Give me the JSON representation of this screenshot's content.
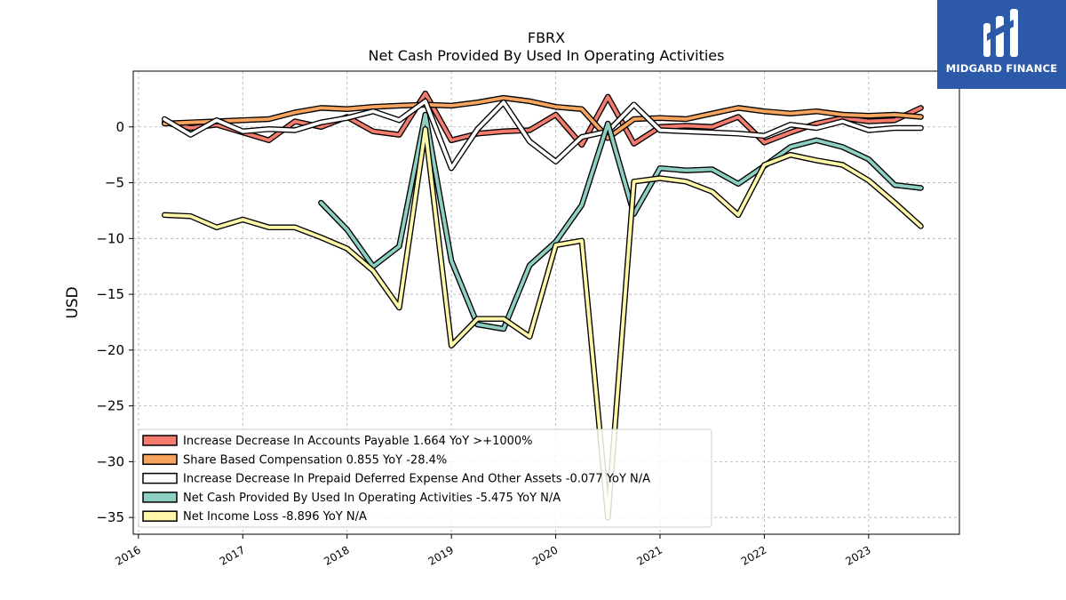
{
  "brand": {
    "name": "MIDGARD FINANCE",
    "color": "#2c5aa8"
  },
  "chart_data": {
    "type": "line",
    "title": "FBRX",
    "subtitle": "Net Cash Provided By Used In Operating Activities",
    "ylabel": "USD",
    "xlabel": "",
    "xlim": [
      2015.95,
      2023.87
    ],
    "ylim": [
      -36.5,
      5.0
    ],
    "yticks": [
      0,
      -5,
      -10,
      -15,
      -20,
      -25,
      -30,
      -35
    ],
    "xticks": [
      "2016",
      "2017",
      "2018",
      "2019",
      "2020",
      "2021",
      "2022",
      "2023"
    ],
    "grid": true,
    "legend_position": "lower-left",
    "series": [
      {
        "name": "Increase Decrease In Accounts Payable",
        "legend": "Increase Decrease In Accounts Payable  1.664 YoY >+1000%",
        "color": "#f47c6e",
        "x": [
          2016.25,
          2016.5,
          2016.75,
          2017.0,
          2017.25,
          2017.5,
          2017.75,
          2018.0,
          2018.25,
          2018.5,
          2018.75,
          2019.0,
          2019.25,
          2019.5,
          2019.75,
          2020.0,
          2020.25,
          2020.5,
          2020.75,
          2021.0,
          2021.25,
          2021.5,
          2021.75,
          2022.0,
          2022.25,
          2022.5,
          2022.75,
          2023.0,
          2023.25,
          2023.5
        ],
        "y": [
          0.4,
          -0.1,
          0.2,
          -0.5,
          -1.2,
          0.5,
          0.0,
          0.9,
          -0.4,
          -0.7,
          3.0,
          -1.2,
          -0.6,
          -0.4,
          -0.3,
          1.1,
          -1.6,
          2.7,
          -1.5,
          0.0,
          0.1,
          0.0,
          0.9,
          -1.4,
          -0.5,
          0.3,
          0.8,
          0.5,
          0.6,
          1.7
        ]
      },
      {
        "name": "Share Based Compensation",
        "legend": "Share Based Compensation  0.855 YoY -28.4%",
        "color": "#f7a55e",
        "x": [
          2016.25,
          2016.5,
          2016.75,
          2017.0,
          2017.25,
          2017.5,
          2017.75,
          2018.0,
          2018.25,
          2018.5,
          2018.75,
          2019.0,
          2019.25,
          2019.5,
          2019.75,
          2020.0,
          2020.25,
          2020.5,
          2020.75,
          2021.0,
          2021.25,
          2021.5,
          2021.75,
          2022.0,
          2022.25,
          2022.5,
          2022.75,
          2023.0,
          2023.25,
          2023.5
        ],
        "y": [
          0.3,
          0.4,
          0.5,
          0.6,
          0.7,
          1.3,
          1.7,
          1.6,
          1.8,
          1.9,
          2.0,
          1.9,
          2.2,
          2.6,
          2.3,
          1.8,
          1.6,
          -1.0,
          0.7,
          0.8,
          0.7,
          1.2,
          1.7,
          1.4,
          1.2,
          1.4,
          1.1,
          1.0,
          1.1,
          0.9
        ]
      },
      {
        "name": "Increase Decrease In Prepaid Deferred Expense And Other Assets",
        "legend": "Increase Decrease In Prepaid Deferred Expense And Other Assets  -0.077 YoY N/A",
        "color": "#ffffff",
        "x": [
          2016.25,
          2016.5,
          2016.75,
          2017.0,
          2017.25,
          2017.5,
          2017.75,
          2018.0,
          2018.25,
          2018.5,
          2018.75,
          2019.0,
          2019.25,
          2019.5,
          2019.75,
          2020.0,
          2020.25,
          2020.5,
          2020.75,
          2021.0,
          2021.25,
          2021.5,
          2021.75,
          2022.0,
          2022.25,
          2022.5,
          2022.75,
          2023.0,
          2023.25,
          2023.5
        ],
        "y": [
          0.7,
          -0.7,
          0.6,
          -0.4,
          -0.2,
          -0.3,
          0.4,
          0.8,
          1.4,
          0.6,
          2.3,
          -3.7,
          -0.2,
          2.2,
          -1.3,
          -3.1,
          -0.9,
          -0.4,
          2.0,
          -0.3,
          -0.4,
          -0.5,
          -0.6,
          -0.8,
          0.2,
          -0.1,
          0.5,
          -0.3,
          -0.1,
          -0.1
        ]
      },
      {
        "name": "Net Cash Provided By Used In Operating Activities",
        "legend": "Net Cash Provided By Used In Operating Activities  -5.475 YoY N/A",
        "color": "#8dcfc2",
        "x": [
          2017.75,
          2018.0,
          2018.25,
          2018.5,
          2018.75,
          2019.0,
          2019.25,
          2019.5,
          2019.75,
          2020.0,
          2020.25,
          2020.5,
          2020.75,
          2021.0,
          2021.25,
          2021.5,
          2021.75,
          2022.0,
          2022.25,
          2022.5,
          2022.75,
          2023.0,
          2023.25,
          2023.5
        ],
        "y": [
          -6.8,
          -9.2,
          -12.5,
          -10.7,
          1.1,
          -12.0,
          -17.7,
          -18.1,
          -12.4,
          -10.3,
          -7.0,
          0.3,
          -7.8,
          -3.7,
          -3.9,
          -3.8,
          -5.1,
          -3.5,
          -1.8,
          -1.2,
          -1.8,
          -2.9,
          -5.2,
          -5.475
        ]
      },
      {
        "name": "Net Income Loss",
        "legend": "Net Income Loss  -8.896 YoY N/A",
        "color": "#fef7a9",
        "x": [
          2016.25,
          2016.5,
          2016.75,
          2017.0,
          2017.25,
          2017.5,
          2017.75,
          2018.0,
          2018.25,
          2018.5,
          2018.75,
          2019.0,
          2019.25,
          2019.5,
          2019.75,
          2020.0,
          2020.25,
          2020.5,
          2020.75,
          2021.0,
          2021.25,
          2021.5,
          2021.75,
          2022.0,
          2022.25,
          2022.5,
          2022.75,
          2023.0,
          2023.25,
          2023.5
        ],
        "y": [
          -7.9,
          -8.0,
          -9.0,
          -8.3,
          -9.0,
          -9.0,
          -9.9,
          -10.9,
          -12.9,
          -16.2,
          -0.2,
          -19.6,
          -17.2,
          -17.2,
          -18.8,
          -10.6,
          -10.2,
          -35.0,
          -4.9,
          -4.6,
          -4.9,
          -5.8,
          -7.9,
          -3.4,
          -2.5,
          -3.0,
          -3.4,
          -4.8,
          -6.8,
          -8.896
        ]
      }
    ]
  }
}
